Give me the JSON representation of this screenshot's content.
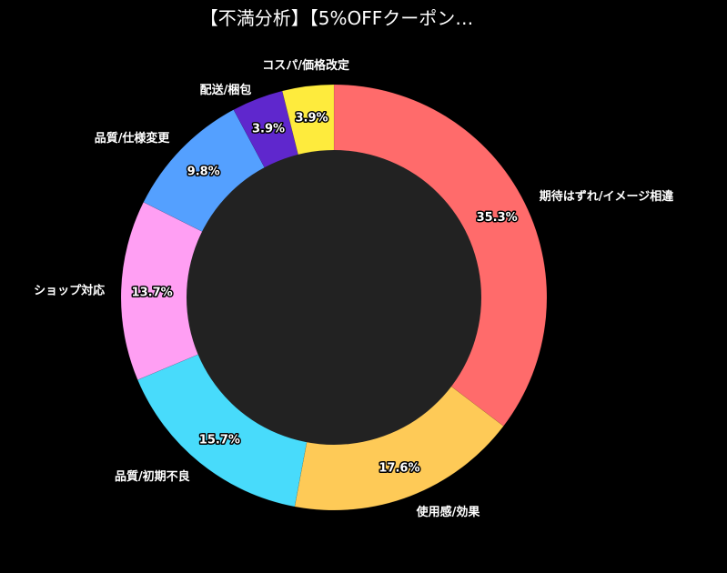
{
  "title": "【不満分析】【5%OFFクーポン…",
  "chart_data": {
    "type": "pie",
    "donut": true,
    "title": "【不満分析】【5%OFFクーポン…",
    "slices": [
      {
        "label": "期待はずれ/イメージ相違",
        "value": 35.3,
        "display": "35.3%",
        "color": "#ff6b6b"
      },
      {
        "label": "使用感/効果",
        "value": 17.6,
        "display": "17.6%",
        "color": "#feca57"
      },
      {
        "label": "品質/初期不良",
        "value": 15.7,
        "display": "15.7%",
        "color": "#48dbfb"
      },
      {
        "label": "ショップ対応",
        "value": 13.7,
        "display": "13.7%",
        "color": "#ff9ff3"
      },
      {
        "label": "品質/仕様変更",
        "value": 9.8,
        "display": "9.8%",
        "color": "#54a0ff"
      },
      {
        "label": "配送/梱包",
        "value": 3.9,
        "display": "3.9%",
        "color": "#5f27cd"
      },
      {
        "label": "コスパ/価格改定",
        "value": 3.9,
        "display": "3.9%",
        "color": "#feeb3d"
      }
    ],
    "start_angle": "12 o'clock",
    "direction": "clockwise",
    "hole_color": "#222222"
  }
}
